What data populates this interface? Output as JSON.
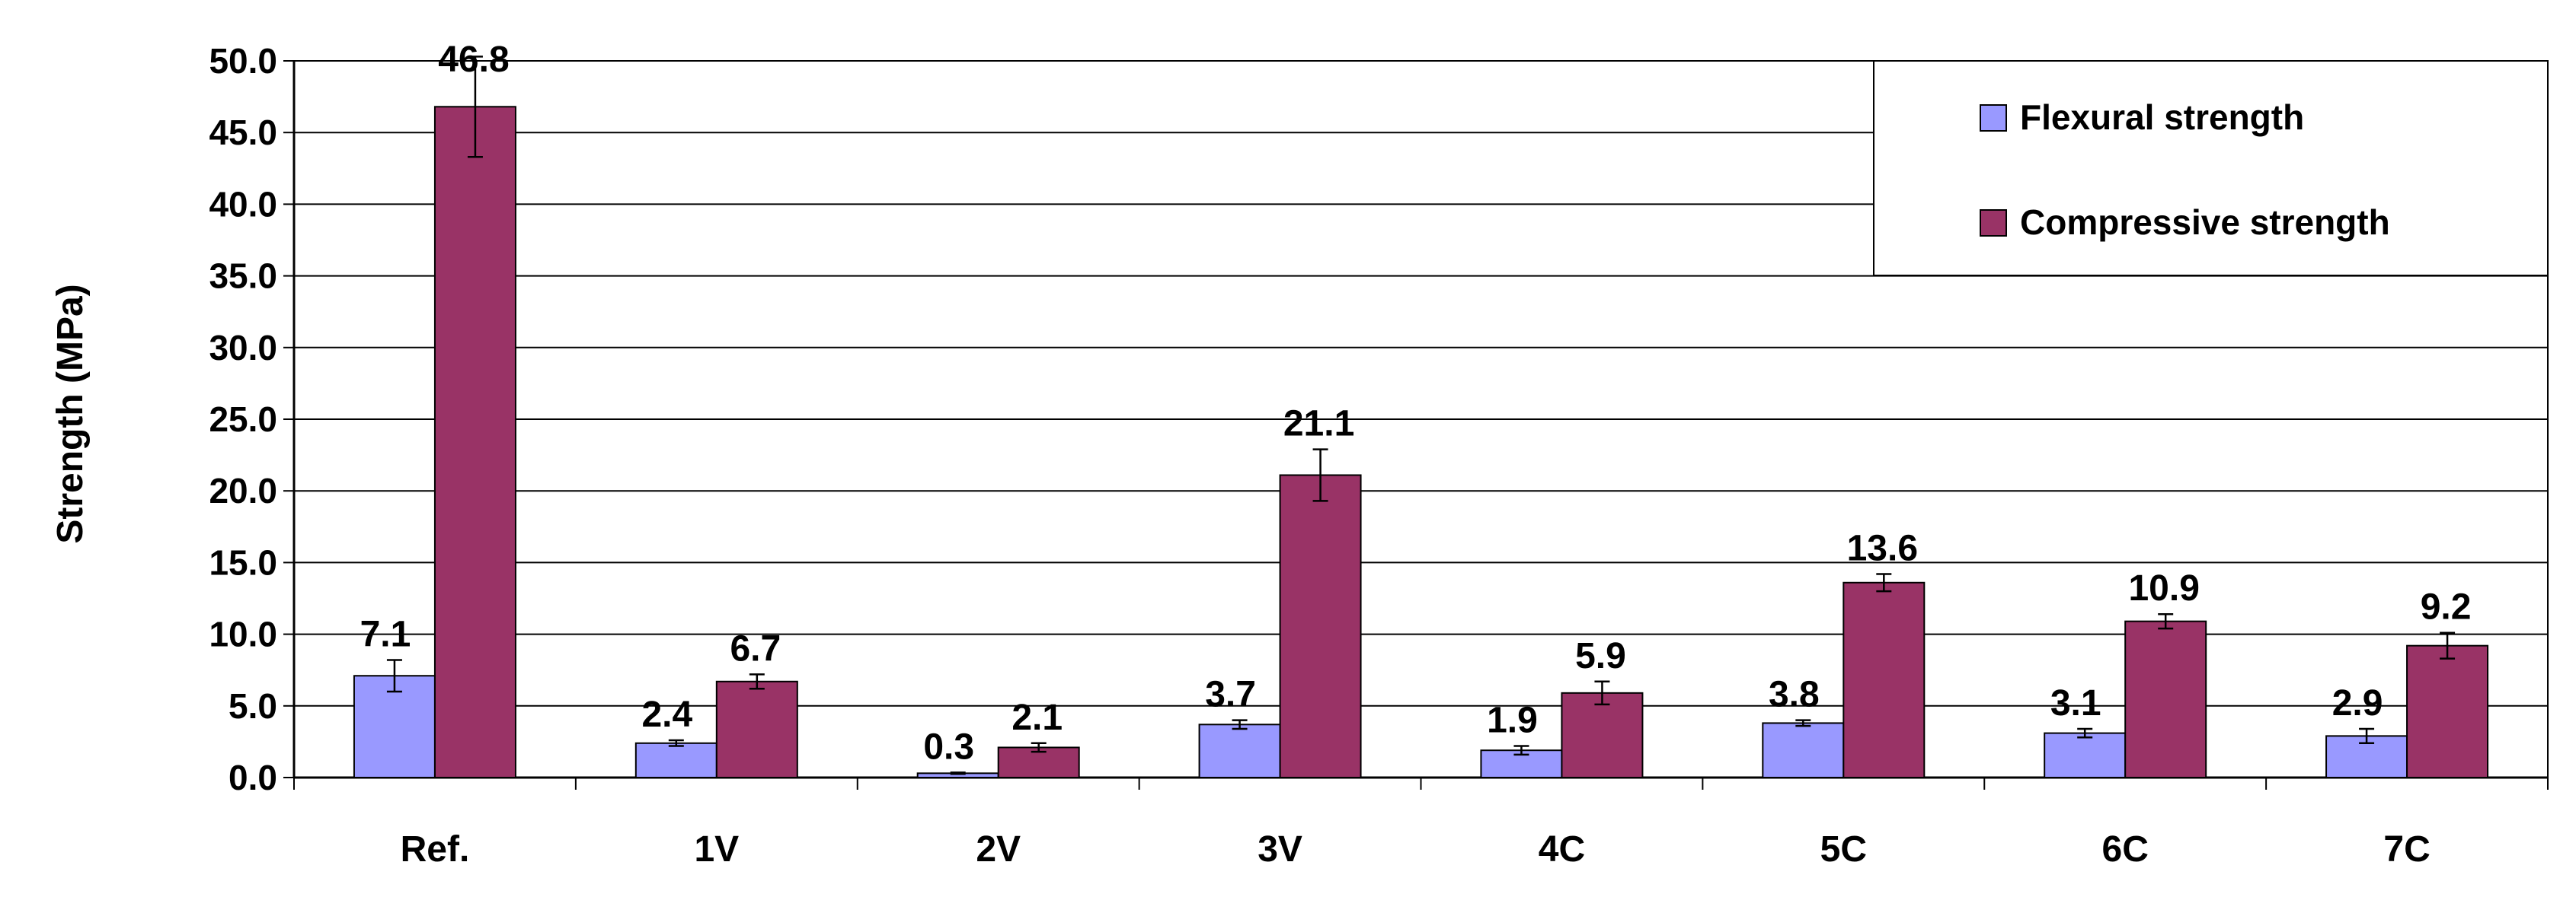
{
  "chart_data": {
    "type": "bar",
    "title": "",
    "xlabel": "",
    "ylabel": "Strength (MPa)",
    "ylim": [
      0,
      50
    ],
    "ytick_step": 5,
    "ytick_labels": [
      "0.0",
      "5.0",
      "10.0",
      "15.0",
      "20.0",
      "25.0",
      "30.0",
      "35.0",
      "40.0",
      "45.0",
      "50.0"
    ],
    "grid": true,
    "legend_position": "top-right",
    "categories": [
      "Ref.",
      "1V",
      "2V",
      "3V",
      "4C",
      "5C",
      "6C",
      "7C"
    ],
    "series": [
      {
        "name": "Flexural strength",
        "color": "#9999FF",
        "values": [
          7.1,
          2.4,
          0.3,
          3.7,
          1.9,
          3.8,
          3.1,
          2.9
        ],
        "labels": [
          "7.1",
          "2.4",
          "0.3",
          "3.7",
          "1.9",
          "3.8",
          "3.1",
          "2.9"
        ],
        "errors": [
          1.1,
          0.2,
          0.05,
          0.3,
          0.3,
          0.2,
          0.3,
          0.5
        ]
      },
      {
        "name": "Compressive strength",
        "color": "#993366",
        "values": [
          46.8,
          6.7,
          2.1,
          21.1,
          5.9,
          13.6,
          10.9,
          9.2
        ],
        "labels": [
          "46.8",
          "6.7",
          "2.1",
          "21.1",
          "5.9",
          "13.6",
          "10.9",
          "9.2"
        ],
        "errors": [
          3.5,
          0.5,
          0.3,
          1.8,
          0.8,
          0.6,
          0.5,
          0.9
        ]
      }
    ]
  }
}
